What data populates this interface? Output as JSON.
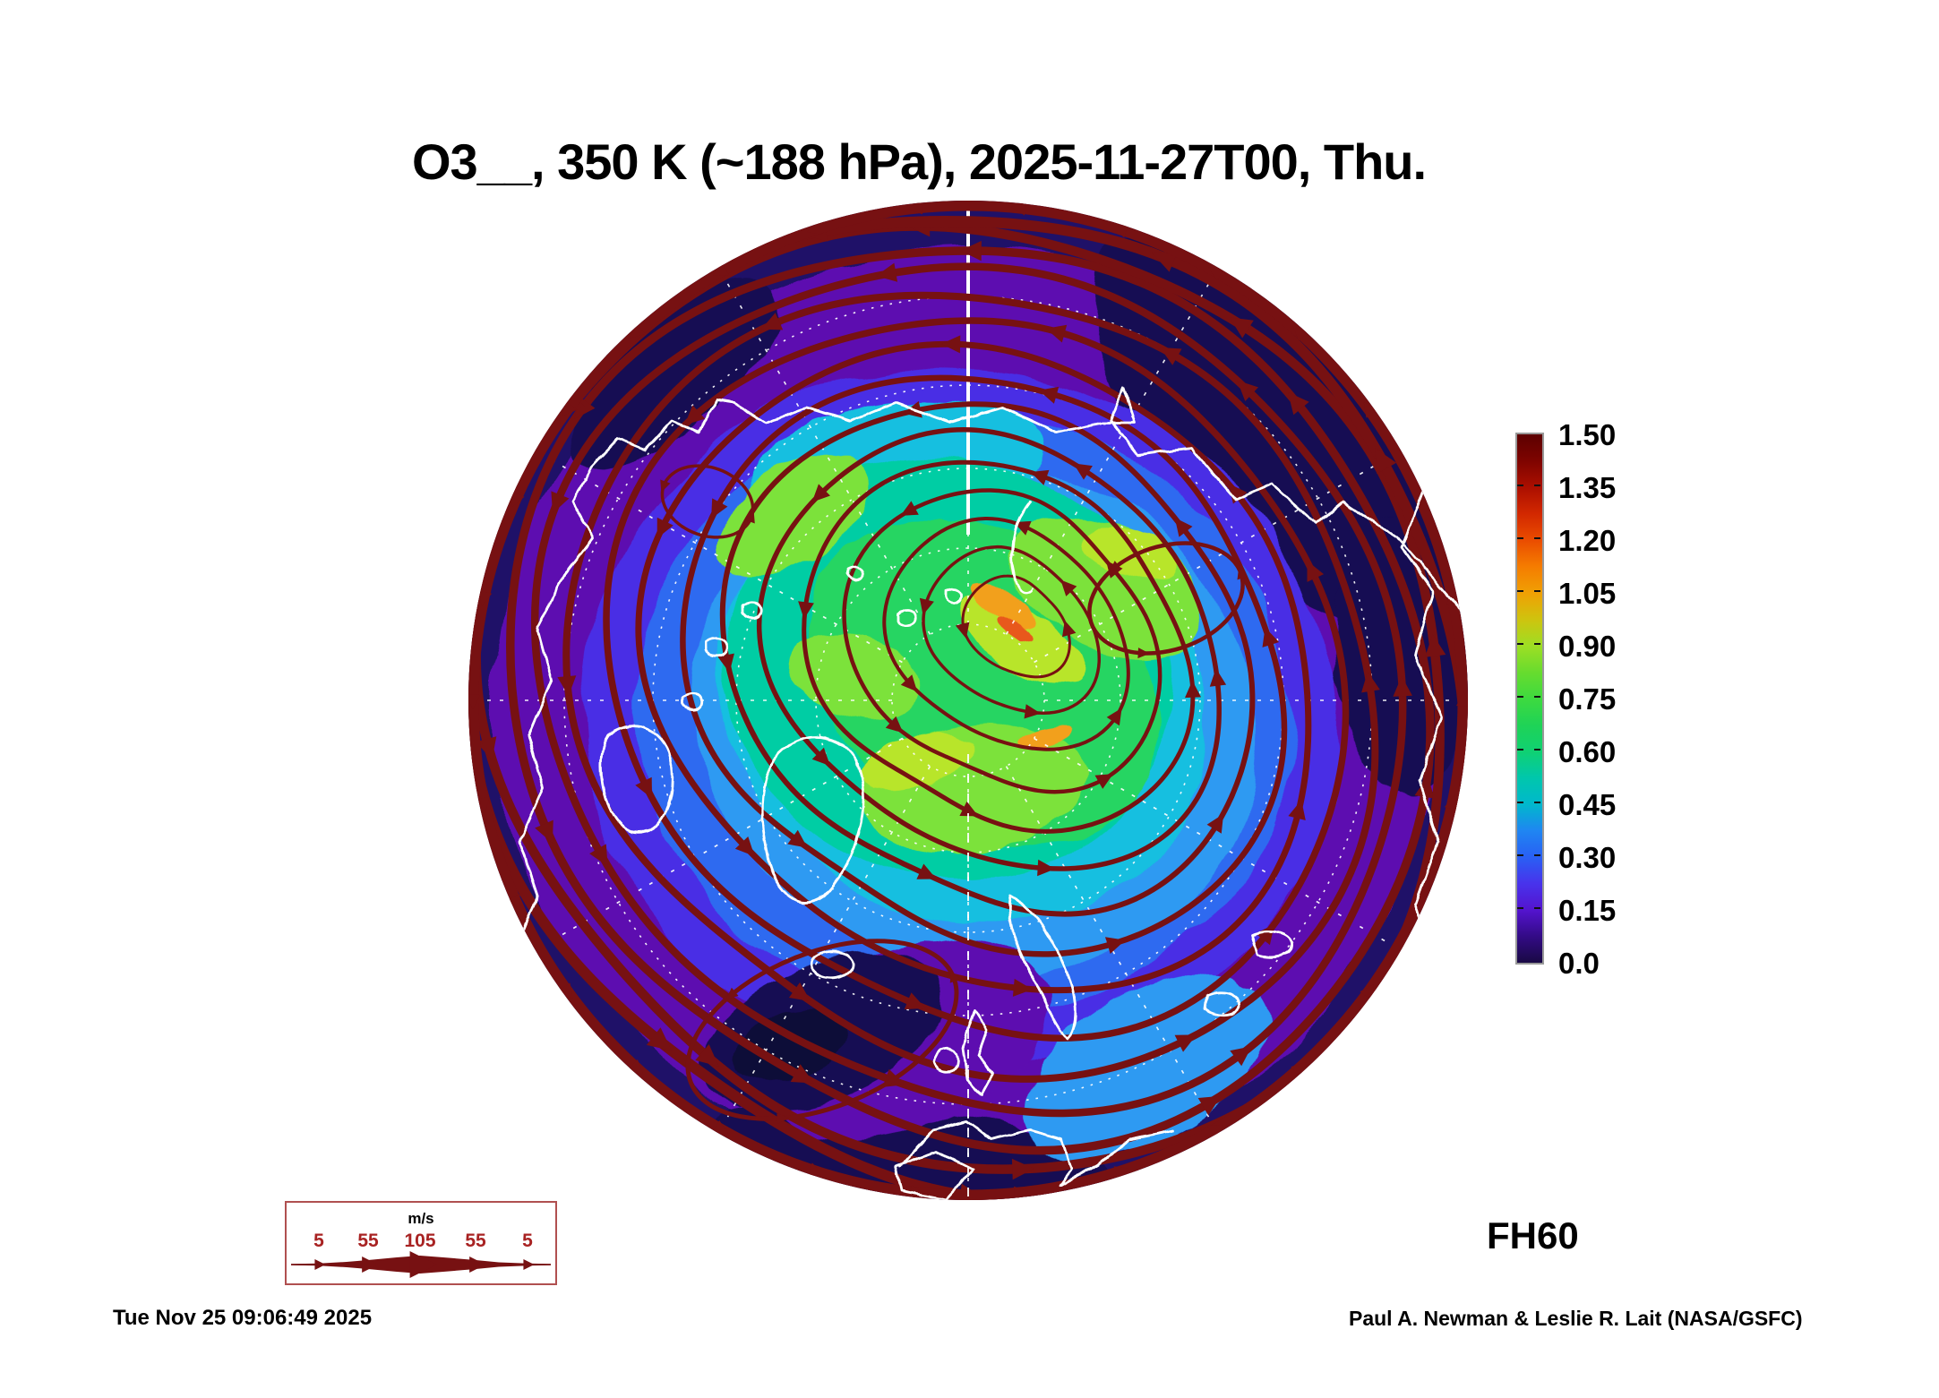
{
  "title": "O3__, 350 K (~188 hPa), 2025-11-27T00, Thu.",
  "forecast_hour_label": "FH60",
  "generated_timestamp": "Tue Nov 25 09:06:49 2025",
  "credit": "Paul A. Newman & Leslie R. Lait (NASA/GSFC)",
  "wind_legend": {
    "units_label": "m/s",
    "speed_ticks": [
      "5",
      "55",
      "105",
      "55",
      "5"
    ],
    "number_color": "#a82222",
    "border_color": "#b05050"
  },
  "colorbar": {
    "tick_labels_top_to_bottom": [
      "1.50",
      "1.35",
      "1.20",
      "1.05",
      "0.90",
      "0.75",
      "0.60",
      "0.45",
      "0.30",
      "0.15",
      "0.0"
    ],
    "gradient_stops": [
      {
        "t": 0.0,
        "c": "#190944"
      },
      {
        "t": 0.05,
        "c": "#330b86"
      },
      {
        "t": 0.1,
        "c": "#5414cf"
      },
      {
        "t": 0.15,
        "c": "#4833ec"
      },
      {
        "t": 0.2,
        "c": "#2960f4"
      },
      {
        "t": 0.25,
        "c": "#1f86f2"
      },
      {
        "t": 0.3,
        "c": "#00b8cc"
      },
      {
        "t": 0.35,
        "c": "#00c7ac"
      },
      {
        "t": 0.4,
        "c": "#10d172"
      },
      {
        "t": 0.45,
        "c": "#1fd356"
      },
      {
        "t": 0.5,
        "c": "#3eda3f"
      },
      {
        "t": 0.55,
        "c": "#68dc2e"
      },
      {
        "t": 0.6,
        "c": "#9ede24"
      },
      {
        "t": 0.65,
        "c": "#cfc30e"
      },
      {
        "t": 0.7,
        "c": "#f0a004"
      },
      {
        "t": 0.75,
        "c": "#f57c00"
      },
      {
        "t": 0.8,
        "c": "#ea4c00"
      },
      {
        "t": 0.85,
        "c": "#d22800"
      },
      {
        "t": 0.9,
        "c": "#ab0f00"
      },
      {
        "t": 0.95,
        "c": "#7e0400"
      },
      {
        "t": 1.0,
        "c": "#5c0000"
      }
    ]
  },
  "map": {
    "streamline_color": "#771112",
    "coastline_color": "#ffffff",
    "graticule_color": "#ffffff",
    "field_colors": {
      "navy_base": "#1f1168",
      "navy_deep": "#150d52",
      "navy_core": "#0e0a38",
      "purple": "#5d11b0",
      "violet": "#4a2fe5",
      "blue": "#2e6af0",
      "light_blue": "#2d9af2",
      "cyan": "#12bfe0",
      "teal": "#04cda4",
      "green": "#25d562",
      "bright_green": "#7ce23a",
      "yellow_green": "#b8e52c",
      "orange": "#f2a01c",
      "red_orange": "#e8581a"
    }
  },
  "chart_data": {
    "type": "heatmap",
    "title": "O3__, 350 K (~188 hPa), 2025-11-27T00, Thu.",
    "variable": "O3",
    "level": "350 K (~188 hPa)",
    "valid_time": "2025-11-27T00, Thu.",
    "forecast_hour": 60,
    "colorbar_ticks": [
      1.5,
      1.35,
      1.2,
      1.05,
      0.9,
      0.75,
      0.6,
      0.45,
      0.3,
      0.15,
      0.0
    ],
    "colorbar_range": [
      0.0,
      1.5
    ],
    "wind_speed_legend_mps": [
      5,
      55,
      105,
      55,
      5
    ],
    "legend_units": "m/s"
  }
}
